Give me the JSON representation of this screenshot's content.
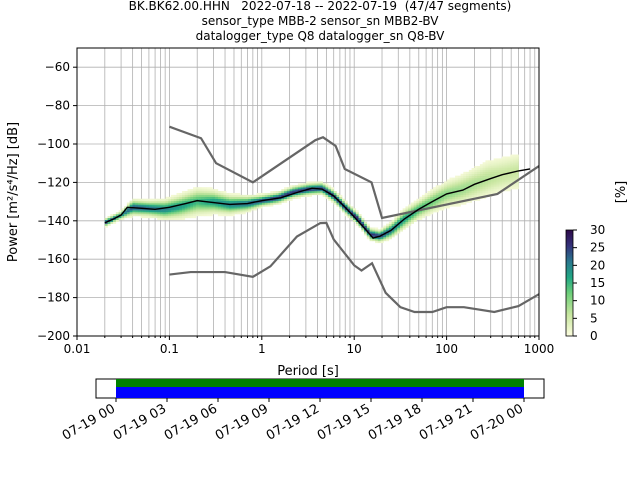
{
  "title_lines": [
    "BK.BK62.00.HHN   2022-07-18 -- 2022-07-19  (47/47 segments)",
    "sensor_type MBB-2 sensor_sn MBB2-BV",
    "datalogger_type Q8 datalogger_sn Q8-BV"
  ],
  "colors": {
    "noise_model": "#666666",
    "mode_line": "#000000",
    "coverage_data": "#008000",
    "coverage_gap_free": "#0000ff"
  },
  "chart_data": {
    "type": "heatmap",
    "xlabel": "Period [s]",
    "ylabel": "Power [m²/s⁴/Hz] [dB]",
    "x_scale": "log",
    "xlim": [
      0.01,
      1000
    ],
    "ylim": [
      -200,
      -50
    ],
    "x_ticks": [
      {
        "value": 0.01,
        "label": "0.01"
      },
      {
        "value": 0.1,
        "label": "0.1"
      },
      {
        "value": 1,
        "label": "1"
      },
      {
        "value": 10,
        "label": "10"
      },
      {
        "value": 100,
        "label": "100"
      },
      {
        "value": 1000,
        "label": "1000"
      }
    ],
    "y_ticks": [
      -60,
      -80,
      -100,
      -120,
      -140,
      -160,
      -180,
      -200
    ],
    "grid": true,
    "colorbar": {
      "label": "[%]",
      "min": 0,
      "max": 30,
      "ticks": [
        0,
        5,
        10,
        15,
        20,
        25,
        30
      ]
    },
    "noise_models": [
      {
        "points": [
          [
            0.1,
            -91
          ],
          [
            0.22,
            -97
          ],
          [
            0.32,
            -110
          ],
          [
            0.8,
            -120
          ],
          [
            3.8,
            -98
          ],
          [
            4.6,
            -96.5
          ],
          [
            6.3,
            -101
          ],
          [
            7.9,
            -113
          ],
          [
            15.4,
            -120
          ],
          [
            20,
            -138.5
          ],
          [
            354.8,
            -126
          ],
          [
            1000,
            -111.5
          ]
        ]
      },
      {
        "points": [
          [
            0.1,
            -168
          ],
          [
            0.17,
            -166.7
          ],
          [
            0.4,
            -166.7
          ],
          [
            0.8,
            -169.2
          ],
          [
            1.24,
            -163.7
          ],
          [
            2.4,
            -148.2
          ],
          [
            4.3,
            -141.2
          ],
          [
            5,
            -141.1
          ],
          [
            6,
            -149.7
          ],
          [
            10,
            -163.2
          ],
          [
            12,
            -165.9
          ],
          [
            15.6,
            -162.1
          ],
          [
            21.9,
            -177.5
          ],
          [
            31.6,
            -185
          ],
          [
            45,
            -187.5
          ],
          [
            70,
            -187.5
          ],
          [
            100,
            -185
          ],
          [
            154,
            -185
          ],
          [
            328,
            -187.5
          ],
          [
            600,
            -184.4
          ],
          [
            1000,
            -178.2
          ]
        ]
      }
    ],
    "mode_curve": [
      [
        0.02,
        -141
      ],
      [
        0.025,
        -139
      ],
      [
        0.03,
        -137
      ],
      [
        0.035,
        -133
      ],
      [
        0.05,
        -133.5
      ],
      [
        0.07,
        -134
      ],
      [
        0.1,
        -133
      ],
      [
        0.15,
        -131
      ],
      [
        0.2,
        -129.5
      ],
      [
        0.3,
        -130.5
      ],
      [
        0.45,
        -131.5
      ],
      [
        0.7,
        -131
      ],
      [
        1,
        -129.5
      ],
      [
        1.6,
        -128
      ],
      [
        2.5,
        -125
      ],
      [
        3.5,
        -123
      ],
      [
        4.5,
        -123.5
      ],
      [
        6,
        -127
      ],
      [
        8,
        -133
      ],
      [
        10,
        -138
      ],
      [
        13,
        -144
      ],
      [
        16,
        -149
      ],
      [
        19,
        -148
      ],
      [
        25,
        -145
      ],
      [
        35,
        -139
      ],
      [
        50,
        -134
      ],
      [
        70,
        -130
      ],
      [
        100,
        -126
      ],
      [
        150,
        -124
      ],
      [
        200,
        -121
      ],
      [
        300,
        -118
      ],
      [
        400,
        -116
      ],
      [
        600,
        -114
      ],
      [
        800,
        -113
      ]
    ],
    "psd_heatmap": [
      {
        "x": [
          0.02,
          0.03,
          0.04,
          0.06,
          0.09,
          0.13,
          0.2,
          0.3,
          0.45,
          0.7,
          1,
          1.5,
          2.2,
          3.2,
          4.5,
          6,
          8,
          11,
          15,
          19,
          25,
          35,
          50,
          70,
          100,
          140,
          200,
          280,
          400,
          600
        ],
        "y": [
          -141,
          -137,
          -133,
          -133.5,
          -134,
          -132.5,
          -130,
          -130,
          -131.5,
          -131,
          -129.5,
          -128,
          -125,
          -123.5,
          -123,
          -127,
          -133,
          -139,
          -147,
          -148,
          -145,
          -139,
          -134,
          -130,
          -126,
          -124,
          -121,
          -118,
          -116,
          -114
        ],
        "spread": [
          2,
          2,
          4,
          4,
          5,
          6,
          7,
          6,
          5,
          4,
          3,
          3,
          3,
          3,
          3,
          3,
          3,
          3,
          3,
          3,
          4,
          5,
          5,
          6,
          7,
          8,
          9,
          10,
          10,
          10
        ],
        "peak_percent": [
          26,
          20,
          24,
          22,
          20,
          18,
          15,
          18,
          20,
          22,
          24,
          25,
          26,
          26,
          25,
          26,
          27,
          28,
          26,
          26,
          22,
          18,
          15,
          12,
          10,
          9,
          8,
          7,
          6,
          6
        ]
      }
    ]
  },
  "coverage": {
    "x_ticks": [
      "07-19 00",
      "07-19 03",
      "07-19 06",
      "07-19 09",
      "07-19 12",
      "07-19 15",
      "07-19 18",
      "07-19 21",
      "07-20 00"
    ],
    "data_span": [
      "07-19 00",
      "07-20 00"
    ]
  }
}
